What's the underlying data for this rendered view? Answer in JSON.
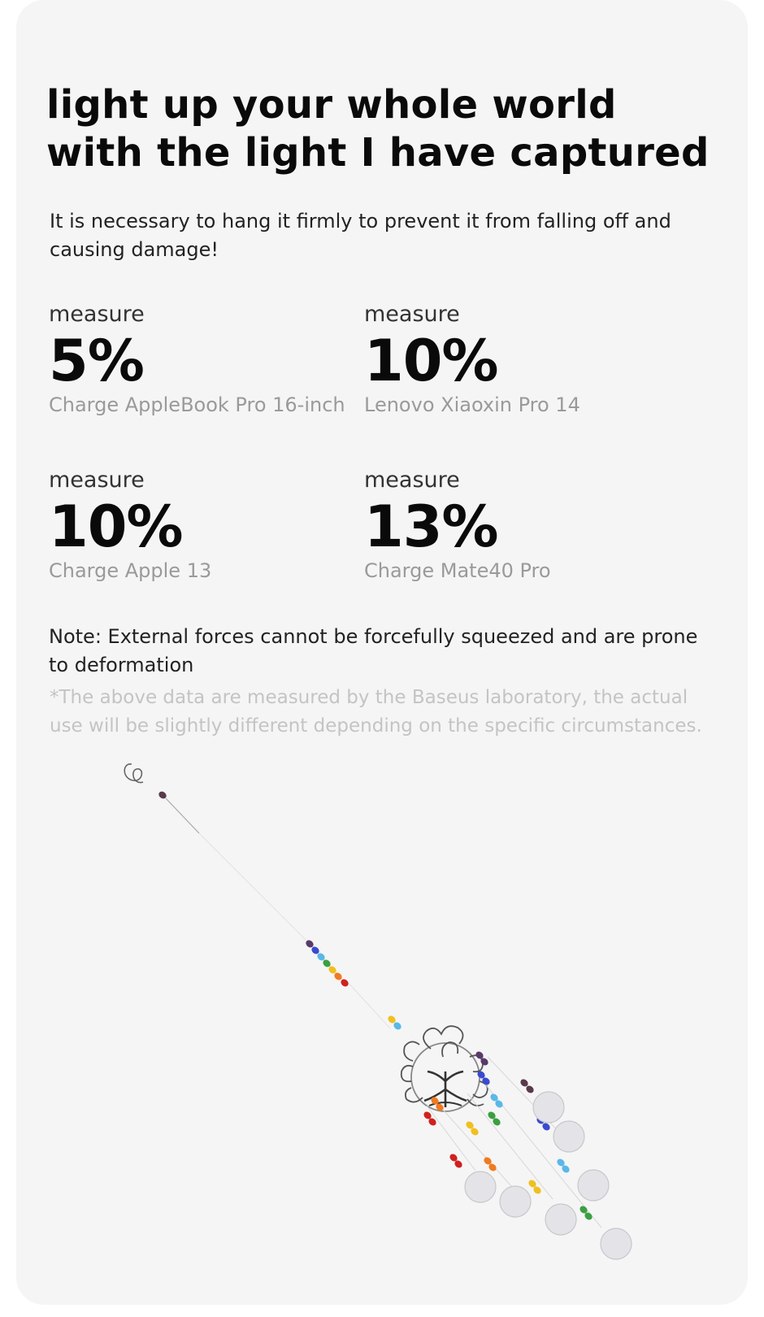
{
  "headline": "light up your whole world with the light I have captured",
  "warning": "It is necessary to hang it firmly to prevent it from falling off and causing damage!",
  "stats": [
    {
      "label": "measure",
      "value": "5%",
      "device": "Charge AppleBook Pro 16-inch"
    },
    {
      "label": "measure",
      "value": "10%",
      "device": "Lenovo Xiaoxin Pro 14"
    },
    {
      "label": "measure",
      "value": "10%",
      "device": "Charge Apple 13"
    },
    {
      "label": "measure",
      "value": "13%",
      "device": "Charge Mate40 Pro"
    }
  ],
  "note": "Note: External forces cannot be forcefully squeezed and are prone to deformation",
  "disclaimer": "*The above data are measured by the Baseus laboratory, the actual use will be slightly different depending on the specific circumstances.",
  "colors": {
    "card_background": "#f5f5f5",
    "headline": "#0a0a0a",
    "device_text": "#9a9a9a",
    "disclaimer_text": "#c4c4c4"
  },
  "product_image": {
    "icon": "suncatcher-tree-of-life-illustration"
  }
}
